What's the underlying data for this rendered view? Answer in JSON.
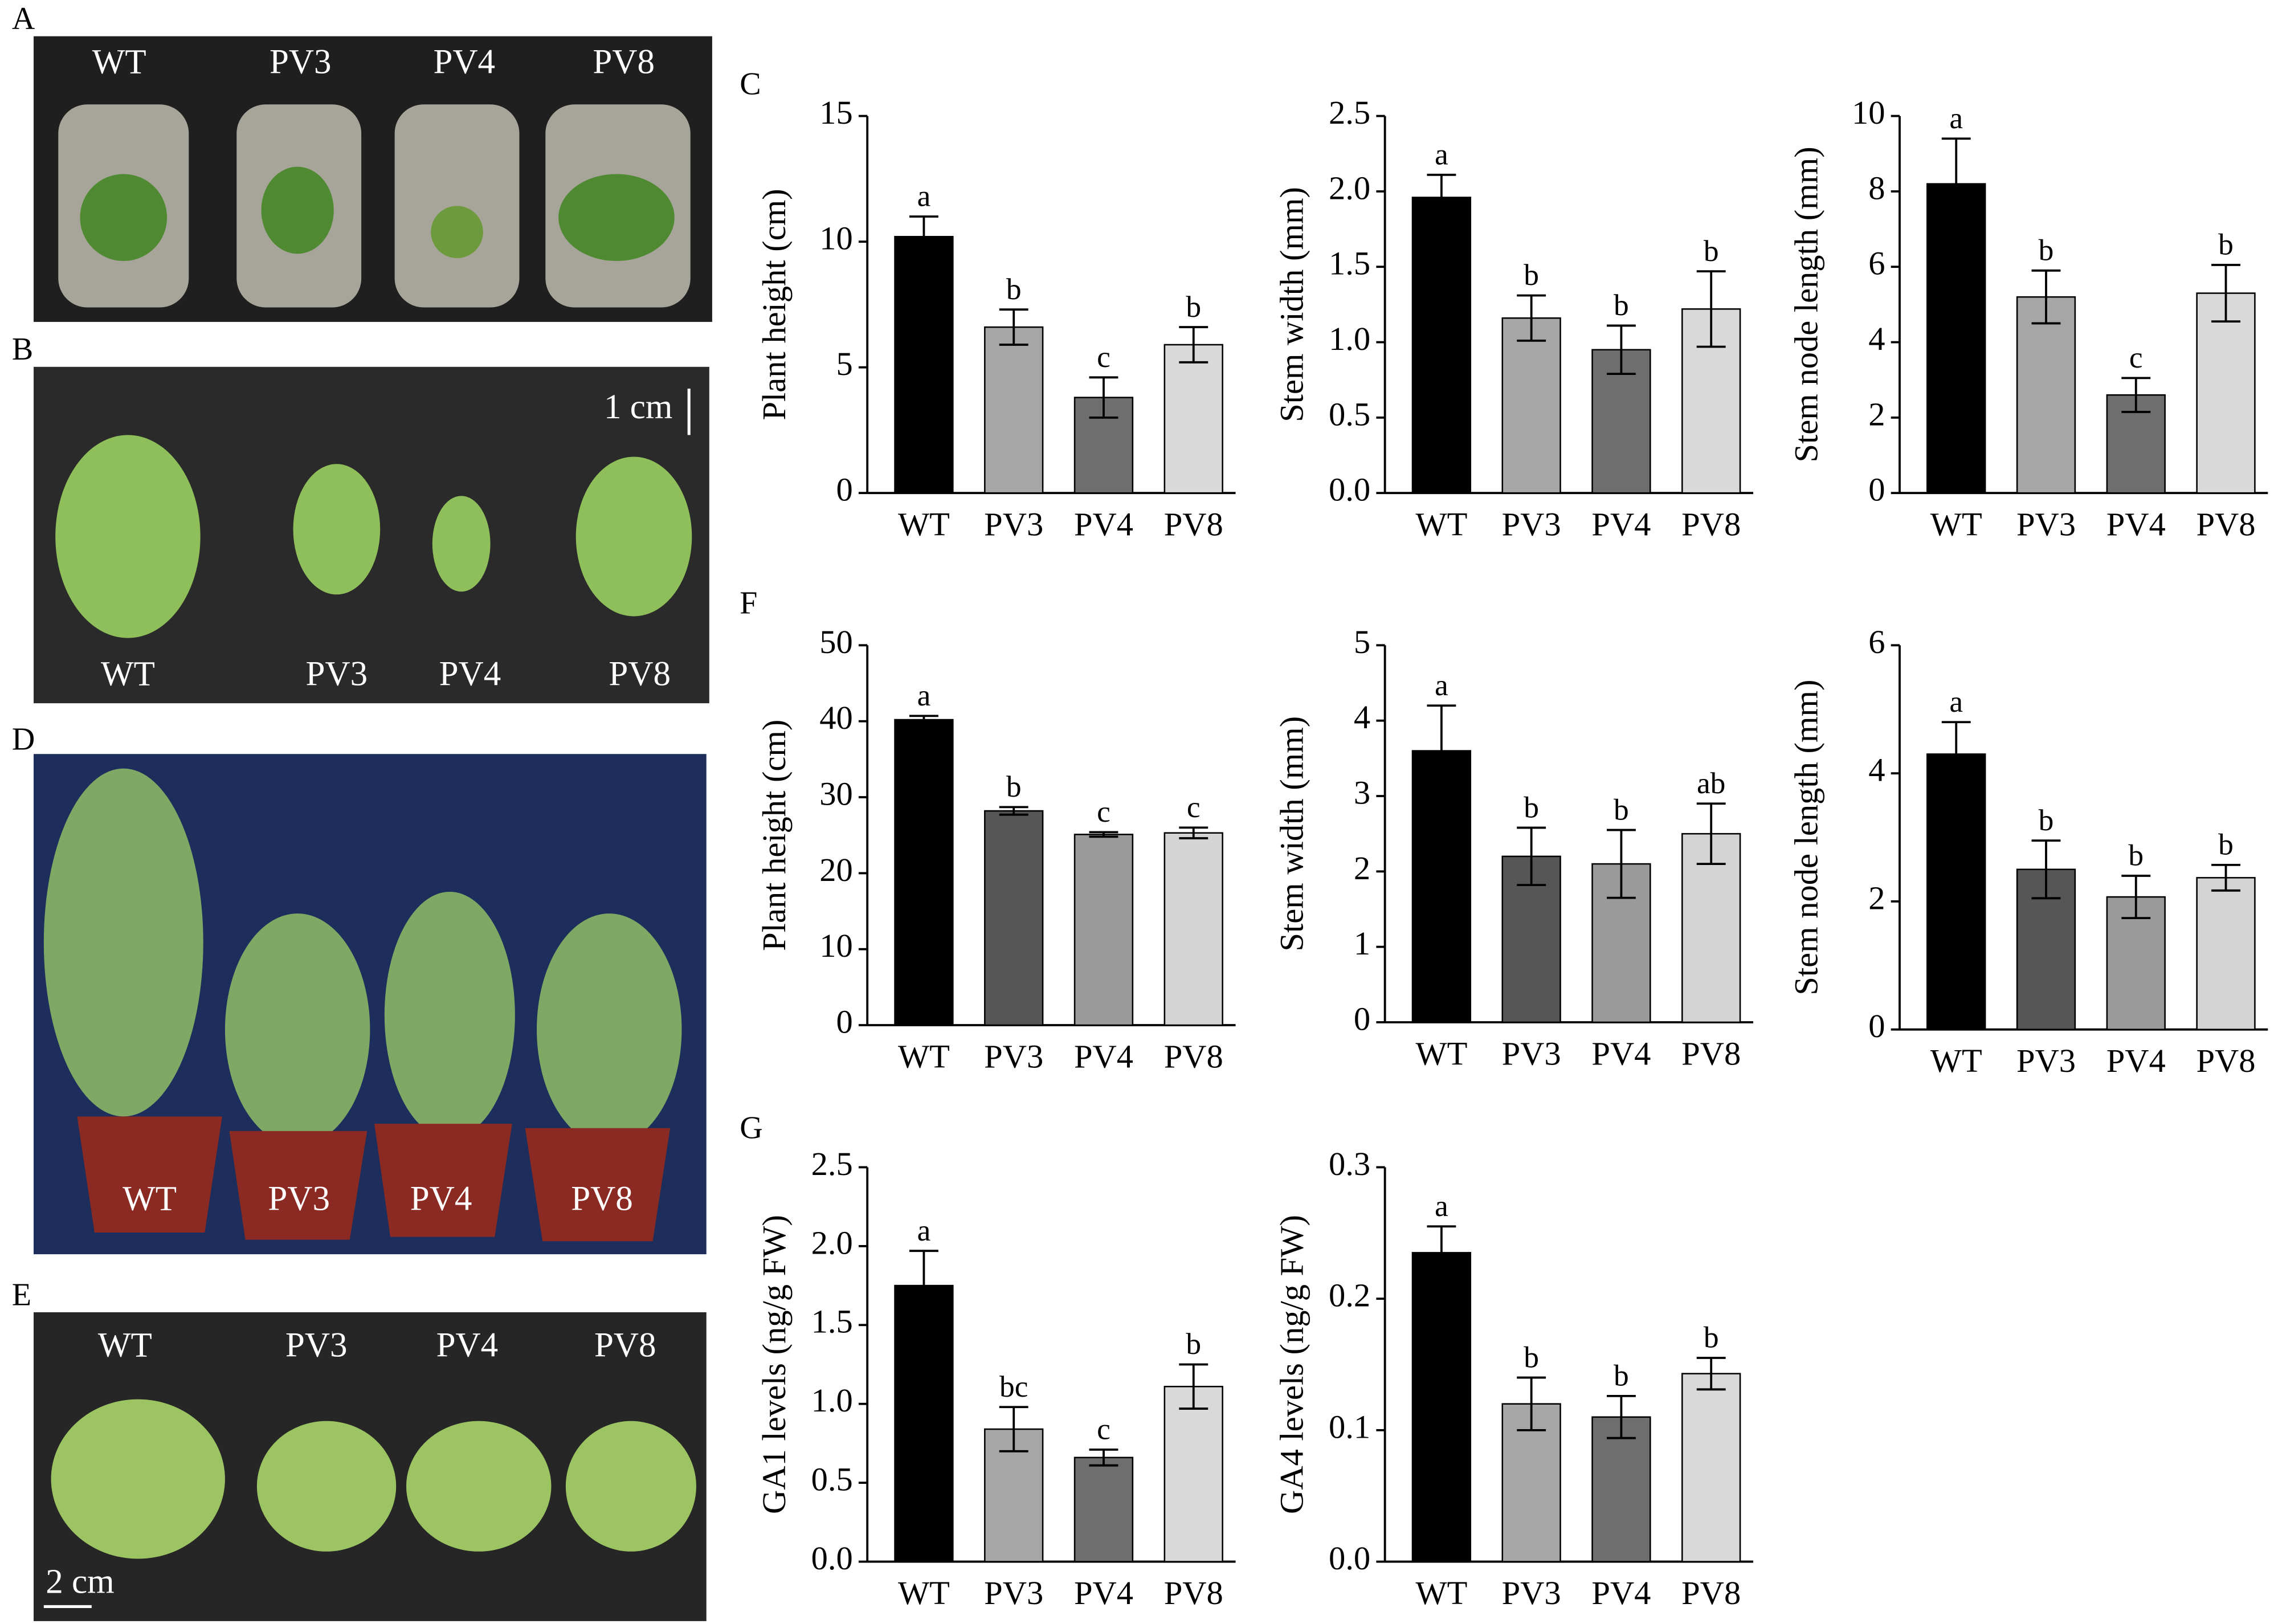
{
  "panels": [
    {
      "letter": "A",
      "labels": [
        "WT",
        "PV3",
        "PV4",
        "PV8"
      ]
    },
    {
      "letter": "B",
      "labels": [
        "WT",
        "PV3",
        "PV4",
        "PV8"
      ],
      "scale": "1 cm"
    },
    {
      "letter": "D",
      "labels": [
        "WT",
        "PV3",
        "PV4",
        "PV8"
      ]
    },
    {
      "letter": "E",
      "labels": [
        "WT",
        "PV3",
        "PV4",
        "PV8"
      ],
      "scale": "2 cm"
    }
  ],
  "chart_data": [
    {
      "type": "bar",
      "panel": "C",
      "ylabel": "Plant height (cm)",
      "categories": [
        "WT",
        "PV3",
        "PV4",
        "PV8"
      ],
      "values": [
        10.2,
        6.6,
        3.8,
        5.9
      ],
      "errors": [
        0.8,
        0.7,
        0.8,
        0.7
      ],
      "annotations": [
        "a",
        "b",
        "c",
        "b"
      ],
      "colors": [
        "#000000",
        "#a6a6a6",
        "#6e6e6e",
        "#d9d9d9"
      ],
      "ylim": [
        0,
        15
      ],
      "yticks": [
        0,
        5,
        10,
        15
      ]
    },
    {
      "type": "bar",
      "ylabel": "Stem width (mm)",
      "categories": [
        "WT",
        "PV3",
        "PV4",
        "PV8"
      ],
      "values": [
        1.96,
        1.16,
        0.95,
        1.22
      ],
      "errors": [
        0.15,
        0.15,
        0.16,
        0.25
      ],
      "annotations": [
        "a",
        "b",
        "b",
        "b"
      ],
      "colors": [
        "#000000",
        "#a6a6a6",
        "#6e6e6e",
        "#d9d9d9"
      ],
      "ylim": [
        0,
        2.5
      ],
      "yticks": [
        {
          "value": 0,
          "label": "0.0"
        },
        0.5,
        {
          "value": 1,
          "label": "1.0"
        },
        1.5,
        {
          "value": 2,
          "label": "2.0"
        },
        2.5
      ]
    },
    {
      "type": "bar",
      "ylabel": "Stem node length (mm)",
      "categories": [
        "WT",
        "PV3",
        "PV4",
        "PV8"
      ],
      "values": [
        8.2,
        5.2,
        2.6,
        5.3
      ],
      "errors": [
        1.2,
        0.7,
        0.45,
        0.75
      ],
      "annotations": [
        "a",
        "b",
        "c",
        "b"
      ],
      "colors": [
        "#000000",
        "#a6a6a6",
        "#6e6e6e",
        "#d9d9d9"
      ],
      "ylim": [
        0,
        10
      ],
      "yticks": [
        0,
        2,
        4,
        6,
        8,
        10
      ]
    },
    {
      "type": "bar",
      "panel": "F",
      "ylabel": "Plant height (cm)",
      "categories": [
        "WT",
        "PV3",
        "PV4",
        "PV8"
      ],
      "values": [
        40.2,
        28.2,
        25.1,
        25.3
      ],
      "errors": [
        0.5,
        0.5,
        0.3,
        0.7
      ],
      "annotations": [
        "a",
        "b",
        "c",
        "c"
      ],
      "colors": [
        "#000000",
        "#565656",
        "#9a9a9a",
        "#d4d4d4"
      ],
      "ylim": [
        0,
        50
      ],
      "yticks": [
        0,
        10,
        20,
        30,
        40,
        50
      ]
    },
    {
      "type": "bar",
      "ylabel": "Stem width (mm)",
      "categories": [
        "WT",
        "PV3",
        "PV4",
        "PV8"
      ],
      "values": [
        3.6,
        2.2,
        2.1,
        2.5
      ],
      "errors": [
        0.6,
        0.38,
        0.45,
        0.4
      ],
      "annotations": [
        "a",
        "b",
        "b",
        "ab"
      ],
      "colors": [
        "#000000",
        "#565656",
        "#9a9a9a",
        "#d4d4d4"
      ],
      "ylim": [
        0,
        5
      ],
      "yticks": [
        0,
        1,
        2,
        3,
        4,
        5
      ]
    },
    {
      "type": "bar",
      "ylabel": "Stem node length (mm)",
      "categories": [
        "WT",
        "PV3",
        "PV4",
        "PV8"
      ],
      "values": [
        4.3,
        2.5,
        2.07,
        2.37
      ],
      "errors": [
        0.5,
        0.45,
        0.33,
        0.2
      ],
      "annotations": [
        "a",
        "b",
        "b",
        "b"
      ],
      "colors": [
        "#000000",
        "#565656",
        "#9a9a9a",
        "#d4d4d4"
      ],
      "ylim": [
        0,
        6
      ],
      "yticks": [
        0,
        2,
        4,
        6
      ]
    },
    {
      "type": "bar",
      "panel": "G",
      "ylabel": "GA1 levels (ng/g FW)",
      "categories": [
        "WT",
        "PV3",
        "PV4",
        "PV8"
      ],
      "values": [
        1.75,
        0.84,
        0.66,
        1.11
      ],
      "errors": [
        0.22,
        0.14,
        0.05,
        0.14
      ],
      "annotations": [
        "a",
        "bc",
        "c",
        "b"
      ],
      "colors": [
        "#000000",
        "#a6a6a6",
        "#6e6e6e",
        "#d9d9d9"
      ],
      "ylim": [
        0,
        2.5
      ],
      "yticks": [
        {
          "value": 0,
          "label": "0.0"
        },
        0.5,
        {
          "value": 1,
          "label": "1.0"
        },
        1.5,
        {
          "value": 2,
          "label": "2.0"
        },
        2.5
      ]
    },
    {
      "type": "bar",
      "ylabel": "GA4 levels (ng/g FW)",
      "categories": [
        "WT",
        "PV3",
        "PV4",
        "PV8"
      ],
      "values": [
        0.235,
        0.12,
        0.11,
        0.143
      ],
      "errors": [
        0.02,
        0.02,
        0.016,
        0.012
      ],
      "annotations": [
        "a",
        "b",
        "b",
        "b"
      ],
      "colors": [
        "#000000",
        "#a6a6a6",
        "#6e6e6e",
        "#d9d9d9"
      ],
      "ylim": [
        0,
        0.3
      ],
      "yticks": [
        {
          "value": 0,
          "label": "0.0"
        },
        0.1,
        0.2,
        0.3
      ]
    }
  ]
}
